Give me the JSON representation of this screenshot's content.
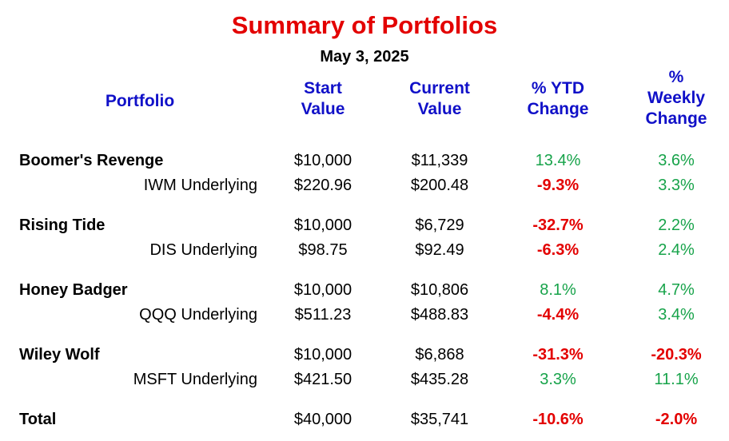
{
  "title": "Summary of Portfolios",
  "date": "May 3, 2025",
  "headers": {
    "portfolio": "Portfolio",
    "start": [
      "Start",
      "Value"
    ],
    "current": [
      "Current",
      "Value"
    ],
    "ytd": [
      "% YTD",
      "Change"
    ],
    "weekly": [
      "%",
      "Weekly",
      "Change"
    ]
  },
  "colors": {
    "title": "#e30000",
    "header": "#1010c8",
    "positive": "#17a34a",
    "negative": "#e30000"
  },
  "portfolios": [
    {
      "name": "Boomer's Revenge",
      "start": "$10,000",
      "current": "$11,339",
      "ytd": "13.4%",
      "weekly": "3.6%",
      "underlying": {
        "name": "IWM Underlying",
        "start": "$220.96",
        "current": "$200.48",
        "ytd": "-9.3%",
        "weekly": "3.3%"
      }
    },
    {
      "name": "Rising Tide",
      "start": "$10,000",
      "current": "$6,729",
      "ytd": "-32.7%",
      "weekly": "2.2%",
      "underlying": {
        "name": "DIS Underlying",
        "start": "$98.75",
        "current": "$92.49",
        "ytd": "-6.3%",
        "weekly": "2.4%"
      }
    },
    {
      "name": "Honey Badger",
      "start": "$10,000",
      "current": "$10,806",
      "ytd": "8.1%",
      "weekly": "4.7%",
      "underlying": {
        "name": "QQQ Underlying",
        "start": "$511.23",
        "current": "$488.83",
        "ytd": "-4.4%",
        "weekly": "3.4%"
      }
    },
    {
      "name": "Wiley Wolf",
      "start": "$10,000",
      "current": "$6,868",
      "ytd": "-31.3%",
      "weekly": "-20.3%",
      "underlying": {
        "name": "MSFT Underlying",
        "start": "$421.50",
        "current": "$435.28",
        "ytd": "3.3%",
        "weekly": "11.1%"
      }
    }
  ],
  "total": {
    "name": "Total",
    "start": "$40,000",
    "current": "$35,741",
    "ytd": "-10.6%",
    "weekly": "-2.0%"
  }
}
